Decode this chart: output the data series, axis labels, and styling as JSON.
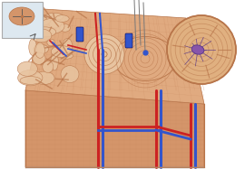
{
  "bg_color": "#ffffff",
  "bone_main_color": "#d4956a",
  "bone_light_color": "#e0aa80",
  "bone_dark_color": "#b8754a",
  "bone_very_light": "#e8c4a0",
  "spongy_color": "#c47a50",
  "grid_color": "#c8855a",
  "grid_alpha": 0.45,
  "red_vessel": "#cc2222",
  "blue_vessel": "#3355cc",
  "circle_inset_bg": "#e0b080",
  "figsize": [
    2.7,
    1.87
  ],
  "dpi": 100
}
